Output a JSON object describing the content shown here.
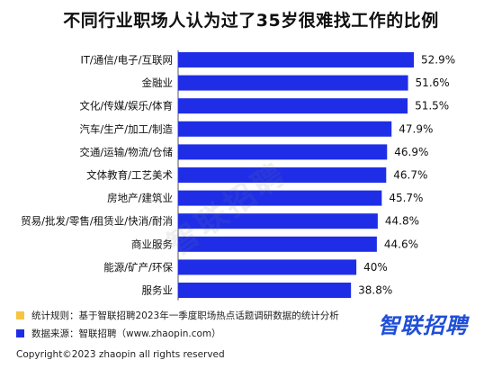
{
  "title": "不同行业职场人认为过了35岁很难找工作的比例",
  "watermark": "智联招聘",
  "notes": [
    {
      "text": "统计规则：基于智联招聘2023年一季度职场热点话题调研数据的统计分析",
      "color": "#f5c542"
    },
    {
      "text": "数据来源：智联招聘（www.zhaopin.com）",
      "color": "#1f2ee6"
    }
  ],
  "logo": "智联招聘",
  "copyright": "Copyright©2023 zhaopin all rights reserved",
  "colors": {
    "bar": "#1f2ee6"
  },
  "chart_data": {
    "type": "bar",
    "orientation": "horizontal",
    "title": "不同行业职场人认为过了35岁很难找工作的比例",
    "categories": [
      "IT/通信/电子/互联网",
      "金融业",
      "文化/传媒/娱乐/体育",
      "汽车/生产/加工/制造",
      "交通/运输/物流/仓储",
      "文体教育/工艺美术",
      "房地产/建筑业",
      "贸易/批发/零售/租赁业/快消/耐消",
      "商业服务",
      "能源/矿产/环保",
      "服务业"
    ],
    "values": [
      52.9,
      51.6,
      51.5,
      47.9,
      46.9,
      46.7,
      45.7,
      44.8,
      44.6,
      40,
      38.8
    ],
    "value_labels": [
      "52.9%",
      "51.6%",
      "51.5%",
      "47.9%",
      "46.9%",
      "46.7%",
      "45.7%",
      "44.8%",
      "44.6%",
      "40%",
      "38.8%"
    ],
    "xlabel": "",
    "ylabel": "",
    "xlim": [
      0,
      52.9
    ],
    "grid": false,
    "legend": "none"
  }
}
